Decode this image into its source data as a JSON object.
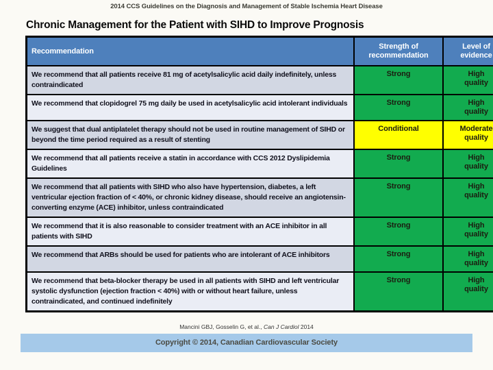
{
  "slide": {
    "deck_header": "2014 CCS Guidelines on the Diagnosis and Management of Stable Ischemia Heart Disease",
    "title": "Chronic Management for the Patient with SIHD to Improve Prognosis",
    "citation": {
      "prefix": "Mancini GBJ, Gosselin G, et al., ",
      "journal_italic": "Can J Cardiol",
      "suffix": " 2014"
    },
    "footer": "Copyright © 2014, Canadian Cardiovascular Society"
  },
  "colors": {
    "header_blue": "#4e80bc",
    "strong_green": "#12ab4f",
    "conditional_yellow": "#ffff00",
    "row_band_dark": "#d2d7e3",
    "row_band_light": "#eaedf5",
    "footer_band_blue": "#a5c9e9"
  },
  "table": {
    "headers": [
      "Recommendation",
      "Strength of\nrecommendation",
      "Level of\nevidence"
    ],
    "rating_colors": {
      "strong": "#12ab4f",
      "conditional": "#ffff00"
    },
    "rows": [
      {
        "recommendation": "We recommend that all patients receive 81 mg of acetylsalicylic acid daily indefinitely, unless contraindicated",
        "strength": "Strong",
        "evidence": "High\nquality",
        "rating": "strong"
      },
      {
        "recommendation": "We recommend that clopidogrel 75 mg daily be used in acetylsalicylic acid intolerant individuals",
        "strength": "Strong",
        "evidence": "High\nquality",
        "rating": "strong"
      },
      {
        "recommendation": "We suggest that dual antiplatelet therapy should not be used in routine management of SIHD or beyond the time period required as a result of stenting",
        "strength": "Conditional",
        "evidence": "Moderate\nquality",
        "rating": "conditional"
      },
      {
        "recommendation": "We recommend that all patients receive a statin in accordance with CCS 2012 Dyslipidemia Guidelines",
        "strength": "Strong",
        "evidence": "High\nquality",
        "rating": "strong"
      },
      {
        "recommendation": "We recommend that all patients with SIHD who also have hypertension, diabetes, a left ventricular ejection fraction of < 40%, or chronic kidney disease, should receive an angiotensin-converting enzyme (ACE) inhibitor, unless contraindicated",
        "strength": "Strong",
        "evidence": "High\nquality",
        "rating": "strong"
      },
      {
        "recommendation": "We recommend that it is also reasonable to consider treatment with an ACE inhibitor in all patients with SIHD",
        "strength": "Strong",
        "evidence": "High\nquality",
        "rating": "strong"
      },
      {
        "recommendation": "We recommend that ARBs should be used for patients who are intolerant of ACE inhibitors",
        "strength": "Strong",
        "evidence": "High\nquality",
        "rating": "strong"
      },
      {
        "recommendation": "We recommend that beta-blocker therapy be used in all patients with SIHD and left ventricular systolic dysfunction (ejection fraction < 40%) with or without heart failure, unless contraindicated, and continued indefinitely",
        "strength": "Strong",
        "evidence": "High\nquality",
        "rating": "strong"
      }
    ]
  }
}
